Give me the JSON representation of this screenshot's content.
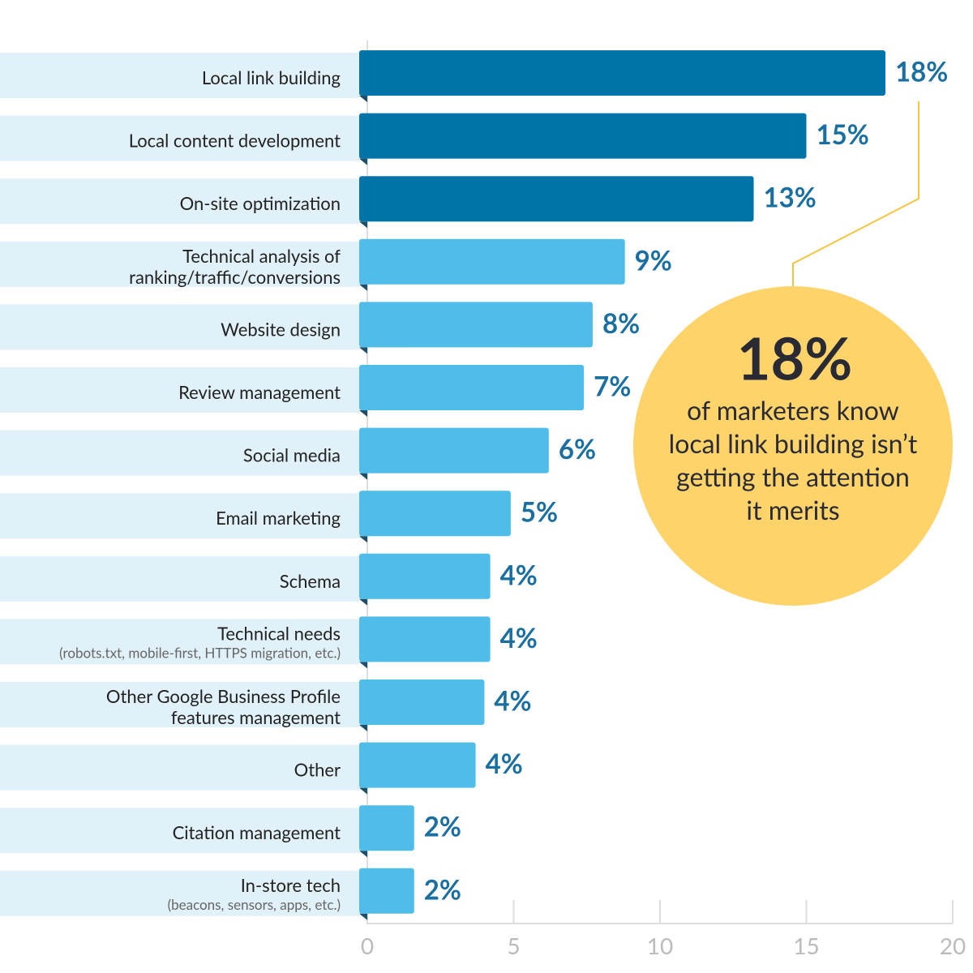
{
  "chart_data": {
    "type": "bar",
    "orientation": "horizontal",
    "categories": [
      "Local link building",
      "Local content development",
      "On-site optimization",
      "Technical analysis of\nranking/traffic/conversions",
      "Website design",
      "Review management",
      "Social media",
      "Email marketing",
      "Schema",
      "Technical needs",
      "Other Google Business Profile\nfeatures management",
      "Other",
      "Citation management",
      "In-store tech"
    ],
    "category_notes": [
      null,
      null,
      null,
      null,
      null,
      null,
      null,
      null,
      null,
      "(robots.txt, mobile-first, HTTPS migration, etc.)",
      null,
      null,
      null,
      "(beacons, sensors, apps, etc.)"
    ],
    "values": [
      17.7,
      15.0,
      13.2,
      8.8,
      7.7,
      7.4,
      6.2,
      4.9,
      4.2,
      4.2,
      4.0,
      3.7,
      1.6,
      1.6
    ],
    "value_labels": [
      "18%",
      "15%",
      "13%",
      "9%",
      "8%",
      "7%",
      "6%",
      "5%",
      "4%",
      "4%",
      "4%",
      "4%",
      "2%",
      "2%"
    ],
    "colors": [
      "#0074a9",
      "#0074a9",
      "#0074a9",
      "#4fbce9",
      "#4fbce9",
      "#4fbce9",
      "#4fbce9",
      "#4fbce9",
      "#4fbce9",
      "#4fbce9",
      "#4fbce9",
      "#4fbce9",
      "#4fbce9",
      "#4fbce9"
    ],
    "xlim": [
      0,
      20
    ],
    "xticks": [
      0,
      5,
      10,
      15,
      20
    ],
    "annotation": {
      "headline": "18%",
      "lines": [
        "of marketers know",
        "local link building isn’t",
        "getting the attention",
        "it merits"
      ]
    }
  }
}
